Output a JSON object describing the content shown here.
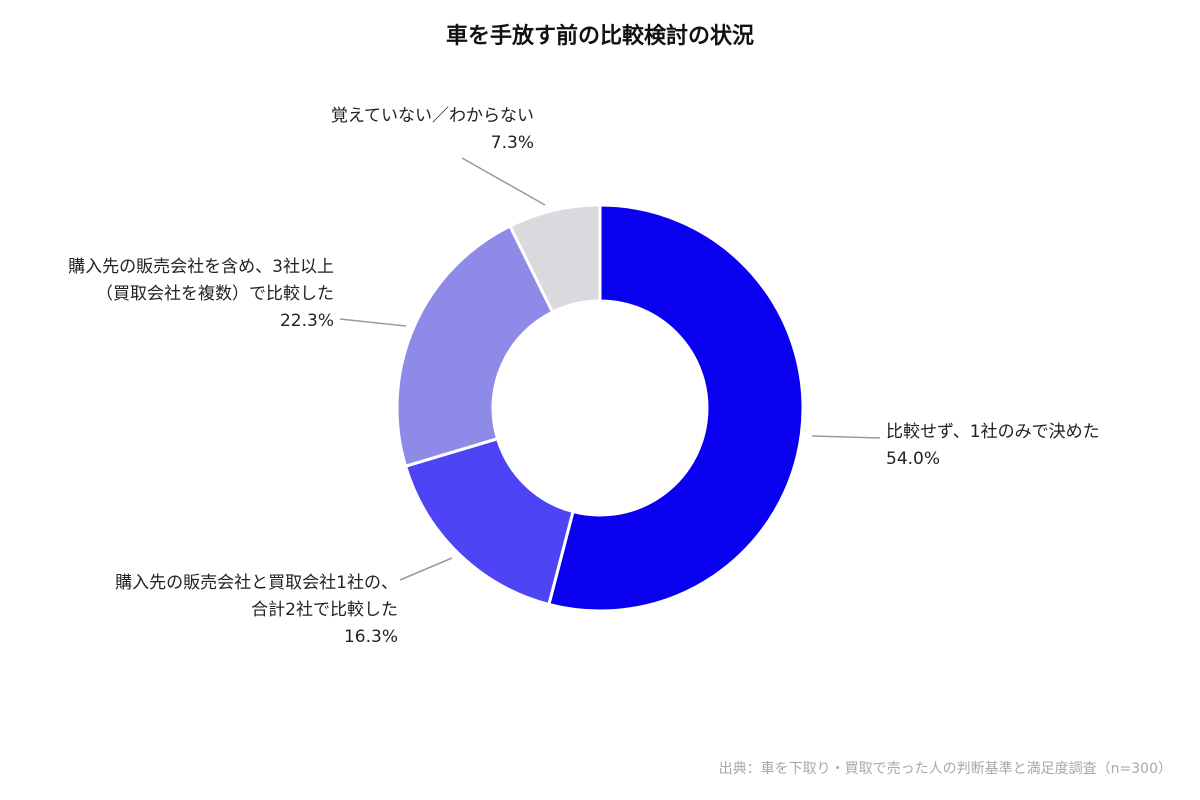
{
  "chart_data": {
    "type": "pie",
    "donut": true,
    "title": "車を手放す前の比較検討の状況",
    "slices": [
      {
        "label_lines": [
          "比較せず、1社のみで決めた"
        ],
        "value": 54.0,
        "value_label": "54.0%",
        "color": "#0A00F0"
      },
      {
        "label_lines": [
          "購入先の販売会社と買取会社1社の、",
          "合計2社で比較した"
        ],
        "value": 16.3,
        "value_label": "16.3%",
        "color": "#4D45F5"
      },
      {
        "label_lines": [
          "購入先の販売会社を含め、3社以上",
          "（買取会社を複数）で比較した"
        ],
        "value": 22.3,
        "value_label": "22.3%",
        "color": "#8E8BE8"
      },
      {
        "label_lines": [
          "覚えていない／わからない"
        ],
        "value": 7.3,
        "value_label": "7.3%",
        "color": "#D9D9DE"
      }
    ],
    "start": "top",
    "direction": "clockwise"
  },
  "source": "出典：車を下取り・買取で売った人の判断基準と満足度調査（n=300）"
}
